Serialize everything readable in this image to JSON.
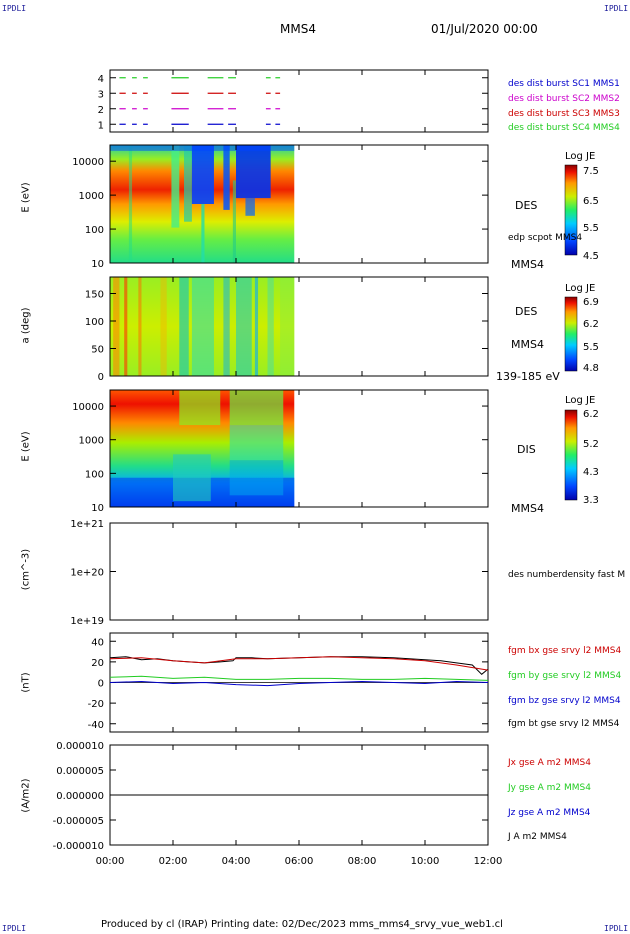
{
  "header": {
    "corner_left": "IPDLI",
    "corner_right": "IPDLI",
    "title": "MMS4",
    "date": "01/Jul/2020 00:00",
    "corner_bottom_left": "IPDLI",
    "corner_bottom_right": "IPDLI"
  },
  "footer": {
    "text": "Produced by cl (IRAP)   Printing date: 02/Dec/2023   mms_mms4_srvy_vue_web1.cl"
  },
  "colors": {
    "red": "#cc0000",
    "green": "#22cc22",
    "blue": "#0000cc",
    "magenta": "#cc00cc",
    "black": "#000000"
  },
  "chart_data": [
    {
      "type": "line",
      "name_panel": "burst-availability",
      "yticks": [
        "1",
        "2",
        "3",
        "4"
      ],
      "ylim": [
        0.5,
        4.5
      ],
      "legend": [
        {
          "label": "des dist burst SC1 MMS1",
          "color": "#0000cc"
        },
        {
          "label": "des dist burst SC2 MMS2",
          "color": "#cc00cc"
        },
        {
          "label": "des dist burst SC3 MMS3",
          "color": "#cc0000"
        },
        {
          "label": "des dist burst SC4 MMS4",
          "color": "#22cc22"
        }
      ],
      "segments_hours": [
        [
          0.3,
          0.5
        ],
        [
          0.7,
          0.85
        ],
        [
          1.05,
          1.2
        ],
        [
          1.95,
          2.5
        ],
        [
          3.1,
          3.6
        ],
        [
          3.75,
          4.0
        ],
        [
          4.95,
          5.1
        ],
        [
          5.25,
          5.4
        ]
      ]
    },
    {
      "type": "heatmap",
      "name_panel": "des-energy-spectrogram",
      "ylabel": "E (eV)",
      "yticks": [
        "10",
        "100",
        "1000",
        "10000"
      ],
      "ylim": [
        10,
        30000
      ],
      "xlim_hours": [
        0,
        5.85
      ],
      "colorbar_title": "Log JE",
      "colorbar_ticks": [
        "7.5",
        "6.5",
        "5.5",
        "4.5"
      ],
      "colorbar_range": [
        4.5,
        7.5
      ],
      "right_labels": [
        "DES",
        "edp scpot MMS4",
        "MMS4"
      ]
    },
    {
      "type": "heatmap",
      "name_panel": "des-pitch-angle",
      "ylabel": "a (deg)",
      "yticks": [
        "0",
        "50",
        "100",
        "150"
      ],
      "ylim": [
        0,
        180
      ],
      "xlim_hours": [
        0,
        5.85
      ],
      "colorbar_title": "Log JE",
      "colorbar_ticks": [
        "6.9",
        "6.2",
        "5.5",
        "4.8"
      ],
      "colorbar_range": [
        4.8,
        6.9
      ],
      "right_labels": [
        "DES",
        "MMS4",
        "139-185 eV"
      ]
    },
    {
      "type": "heatmap",
      "name_panel": "dis-energy-spectrogram",
      "ylabel": "E (eV)",
      "yticks": [
        "10",
        "100",
        "1000",
        "10000"
      ],
      "ylim": [
        10,
        30000
      ],
      "xlim_hours": [
        0,
        5.85
      ],
      "colorbar_title": "Log JE",
      "colorbar_ticks": [
        "6.2",
        "5.2",
        "4.3",
        "3.3"
      ],
      "colorbar_range": [
        3.3,
        6.2
      ],
      "right_labels": [
        "DIS",
        "MMS4"
      ]
    },
    {
      "type": "line",
      "name_panel": "des-density",
      "ylabel": "(cm^-3)",
      "yticks": [
        "1e+19",
        "1e+20",
        "1e+21"
      ],
      "ylim": [
        1e+19,
        1e+21
      ],
      "legend": [
        {
          "label": "des numberdensity fast M",
          "color": "#000000"
        }
      ]
    },
    {
      "type": "line",
      "name_panel": "fgm-magnetic-field",
      "ylabel": "(nT)",
      "yticks": [
        "-40",
        "-20",
        "0",
        "20",
        "40"
      ],
      "ylim": [
        -48,
        48
      ],
      "legend": [
        {
          "label": "fgm bx gse srvy l2 MMS4",
          "color": "#cc0000"
        },
        {
          "label": "fgm by gse srvy l2 MMS4",
          "color": "#22cc22"
        },
        {
          "label": "fgm bz gse srvy l2 MMS4",
          "color": "#0000cc"
        },
        {
          "label": "fgm bt gse srvy l2 MMS4",
          "color": "#000000"
        }
      ],
      "series": [
        {
          "name": "fgm bt gse srvy l2 MMS4",
          "x_hours": [
            0,
            0.5,
            1,
            1.5,
            2,
            2.5,
            3,
            3.5,
            3.9,
            4.0,
            4.5,
            5,
            6,
            7,
            8,
            9,
            9.5,
            10,
            10.5,
            11,
            11.5,
            11.8,
            12
          ],
          "values": [
            24,
            25,
            22,
            23,
            21,
            20,
            19,
            20,
            21,
            24,
            24,
            23,
            24,
            25,
            25,
            24,
            23,
            22,
            21,
            19,
            17,
            8,
            13
          ]
        },
        {
          "name": "fgm by gse srvy l2 MMS4",
          "x_hours": [
            0,
            1,
            2,
            3,
            4,
            5,
            6,
            7,
            8,
            9,
            10,
            11,
            12
          ],
          "values": [
            5,
            6,
            4,
            5,
            3,
            3,
            4,
            4,
            3,
            3,
            4,
            3,
            2
          ]
        },
        {
          "name": "fgm bz gse srvy l2 MMS4",
          "x_hours": [
            0,
            1,
            2,
            3,
            4,
            5,
            6,
            7,
            8,
            9,
            10,
            11,
            12
          ],
          "values": [
            0,
            1,
            -1,
            0,
            -2,
            -3,
            -1,
            0,
            1,
            0,
            -1,
            1,
            0
          ]
        },
        {
          "name": "fgm bx gse srvy l2 MMS4",
          "x_hours": [
            0,
            1,
            2,
            3,
            4,
            5,
            6,
            7,
            8,
            9,
            10,
            11,
            12
          ],
          "values": [
            23,
            24,
            21,
            19,
            23,
            23,
            24,
            25,
            24,
            23,
            21,
            17,
            12
          ]
        }
      ]
    },
    {
      "type": "line",
      "name_panel": "current-density",
      "ylabel": "(A/m2)",
      "yticks": [
        "0.000010",
        "0.000005",
        "0.000000",
        "-0.000005",
        "-0.000010"
      ],
      "ylim": [
        -1e-05,
        1e-05
      ],
      "legend": [
        {
          "label": "Jx gse A m2 MMS4",
          "color": "#cc0000"
        },
        {
          "label": "Jy gse A m2 MMS4",
          "color": "#22cc22"
        },
        {
          "label": "Jz gse A m2 MMS4",
          "color": "#0000cc"
        },
        {
          "label": "J A m2 MMS4",
          "color": "#000000"
        }
      ]
    }
  ],
  "xaxis": {
    "ticks": [
      "00:00",
      "02:00",
      "04:00",
      "06:00",
      "08:00",
      "10:00",
      "12:00"
    ],
    "xlim_hours": [
      0,
      12
    ]
  }
}
